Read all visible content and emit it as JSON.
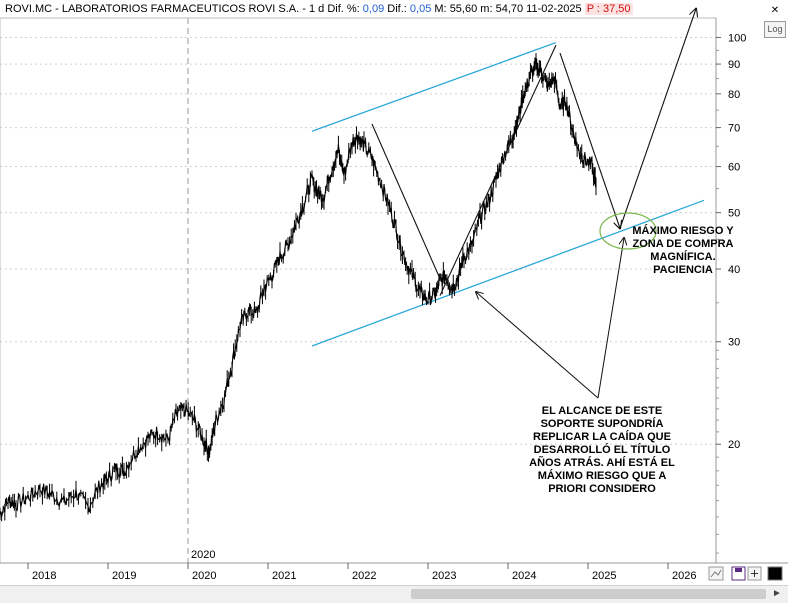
{
  "header": {
    "ticker": "ROVI.MC - LABORATORIOS FARMACEUTICOS ROVI S.A. - ",
    "period": "1 d",
    "dif_pct_label": "Dif. %:",
    "dif_pct_value": "0,09",
    "dif_label": "Dif.:",
    "dif_value": "0,05",
    "m_label1": "M:",
    "m_value1": "55,60",
    "m_label2": "m:",
    "m_value2": "54,70",
    "date": "11-02-2025",
    "p_label": "P :",
    "p_value": "37,50"
  },
  "controls": {
    "log_label": "Log",
    "close_glyph": "✕"
  },
  "annotations": {
    "note_right": "MÁXIMO RIESGO Y\nZONA DE COMPRA\nMAGNÍFICA.\nPACIENCIA",
    "note_bottom": "EL ALCANCE DE ESTE\nSOPORTE SUPONDRÍA\nREPLICAR LA CAÍDA QUE\nDESARROLLÓ EL TÍTULO\nAÑOS ATRÁS. AHÍ ESTÁ EL\nMÁXIMO RIESGO QUE A\nPRIORI CONSIDERO",
    "marker_2020": "2020"
  },
  "colors": {
    "price": "#000000",
    "channel": "#29a8d8",
    "circle": "#7ab648",
    "arrow": "#111111",
    "grid": "#cfcfcf"
  },
  "chart_data": {
    "type": "line",
    "scale": "log",
    "y_ticks": [
      20,
      30,
      40,
      50,
      60,
      70,
      80,
      90,
      100
    ],
    "x_ticks": [
      "2018",
      "2019",
      "2020",
      "2021",
      "2022",
      "2023",
      "2024",
      "2025",
      "2026"
    ],
    "x_range": [
      2017.65,
      2026.6
    ],
    "y_range": [
      12.5,
      108
    ],
    "series": [
      {
        "x": [
          2017.65,
          2017.75,
          2017.85,
          2018.0,
          2018.15,
          2018.3,
          2018.45,
          2018.6,
          2018.75,
          2018.9,
          2019.0,
          2019.1,
          2019.2,
          2019.35,
          2019.5,
          2019.62,
          2019.75,
          2019.85,
          2019.95,
          2020.08,
          2020.2,
          2020.27,
          2020.35,
          2020.45,
          2020.55,
          2020.65,
          2020.75,
          2020.85,
          2020.95,
          2021.05,
          2021.15,
          2021.25,
          2021.35,
          2021.45,
          2021.55,
          2021.62,
          2021.7,
          2021.8,
          2021.88,
          2021.95,
          2022.05,
          2022.12,
          2022.2,
          2022.3,
          2022.4,
          2022.5,
          2022.6,
          2022.7,
          2022.8,
          2022.9,
          2022.98,
          2023.08,
          2023.15,
          2023.22,
          2023.3,
          2023.38,
          2023.45,
          2023.55,
          2023.65,
          2023.75,
          2023.85,
          2023.95,
          2024.05,
          2024.12,
          2024.2,
          2024.28,
          2024.35,
          2024.42,
          2024.5,
          2024.58,
          2024.65,
          2024.72,
          2024.8,
          2024.88,
          2024.95,
          2025.05,
          2025.1
        ],
        "y": [
          15.2,
          16.0,
          15.8,
          16.2,
          16.8,
          16.4,
          15.9,
          16.5,
          15.6,
          17.0,
          17.5,
          18.2,
          18.0,
          19.5,
          20.5,
          21.0,
          20.3,
          22.5,
          23.0,
          22.0,
          20.2,
          19.5,
          22.0,
          24.0,
          27.5,
          32.0,
          34.0,
          33.5,
          37.0,
          39.0,
          42.0,
          44.0,
          48.0,
          52.0,
          57.0,
          54.0,
          53.5,
          60.0,
          64.0,
          58.0,
          66.0,
          68.0,
          65.0,
          62.0,
          57.0,
          52.0,
          47.0,
          42.0,
          39.0,
          36.5,
          35.5,
          36.0,
          38.0,
          39.0,
          37.0,
          39.0,
          42.0,
          44.0,
          49.0,
          52.0,
          57.0,
          63.0,
          67.0,
          72.0,
          80.0,
          86.0,
          90.0,
          87.0,
          82.0,
          85.0,
          76.0,
          78.0,
          70.0,
          64.0,
          62.0,
          60.0,
          55.5
        ]
      }
    ],
    "channel": {
      "upper": {
        "x": [
          2021.55,
          2024.6
        ],
        "y": [
          69.0,
          98.0
        ]
      },
      "lower": {
        "x": [
          2021.55,
          2026.45
        ],
        "y": [
          29.5,
          52.5
        ]
      }
    },
    "projection_arrows": [
      {
        "x": [
          2022.3,
          2023.15
        ],
        "y": [
          71.0,
          38.5
        ]
      },
      {
        "x": [
          2023.15,
          2024.6
        ],
        "y": [
          36.0,
          97.0
        ]
      },
      {
        "x": [
          2024.65,
          2025.4
        ],
        "y": [
          94.0,
          47.0
        ]
      },
      {
        "x": [
          2025.4,
          2026.35
        ],
        "y": [
          47.0,
          112.0
        ]
      }
    ],
    "circle": {
      "x": 2025.5,
      "y": 46.5
    },
    "v_marker_x": 2020.0
  }
}
